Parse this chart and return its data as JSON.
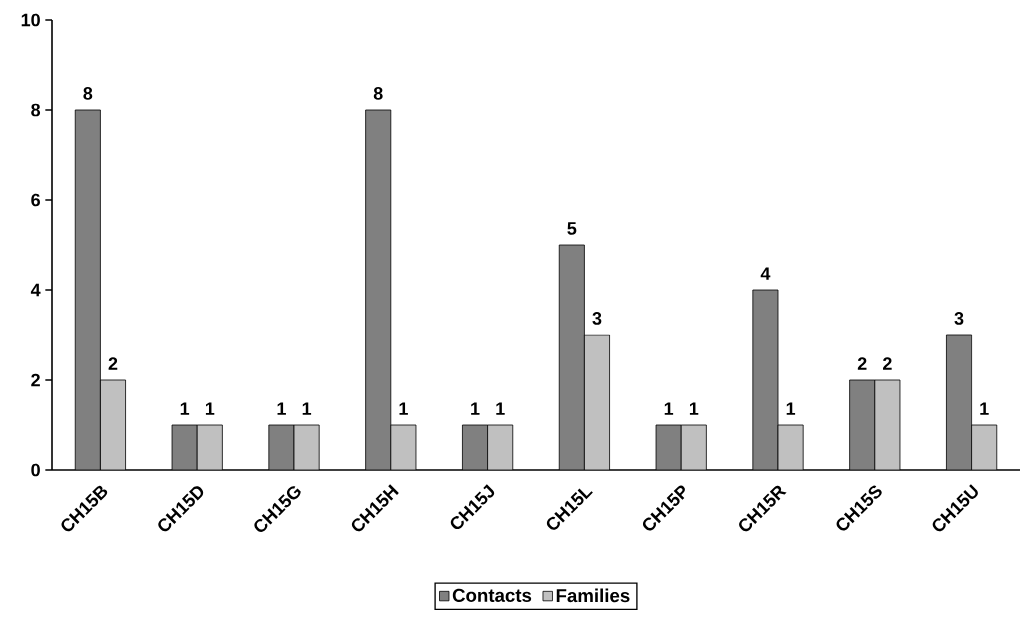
{
  "chart_data": {
    "type": "bar",
    "categories": [
      "CH15B",
      "CH15D",
      "CH15G",
      "CH15H",
      "CH15J",
      "CH15L",
      "CH15P",
      "CH15R",
      "CH15S",
      "CH15U"
    ],
    "series": [
      {
        "name": "Contacts",
        "color": "#808080",
        "values": [
          8,
          1,
          1,
          8,
          1,
          5,
          1,
          4,
          2,
          3
        ]
      },
      {
        "name": "Families",
        "color": "#c0c0c0",
        "values": [
          2,
          1,
          1,
          1,
          1,
          3,
          1,
          1,
          2,
          1
        ]
      }
    ],
    "ylim": [
      0,
      10
    ],
    "yticks": [
      0,
      2,
      4,
      6,
      8,
      10
    ],
    "data_labels": true,
    "legend": "bottom",
    "grid": false
  }
}
